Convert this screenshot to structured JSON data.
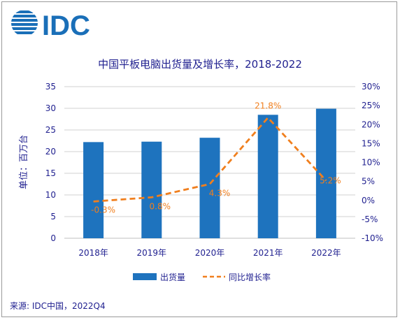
{
  "logo": {
    "text": "IDC",
    "color": "#1a6fb8"
  },
  "source": "来源: IDC中国，2022Q4",
  "chart_data": {
    "type": "bar",
    "title": "中国平板电脑出货量及增长率，2018-2022",
    "ylabel": "单位：百万台",
    "categories": [
      "2018年",
      "2019年",
      "2020年",
      "2021年",
      "2022年"
    ],
    "ylim": [
      0,
      35
    ],
    "yticks": [
      "0",
      "5",
      "10",
      "15",
      "20",
      "25",
      "30",
      "35"
    ],
    "y2lim": [
      -10,
      30
    ],
    "y2ticks": [
      "-10%",
      "-5%",
      "0%",
      "5%",
      "10%",
      "15%",
      "20%",
      "25%",
      "30%"
    ],
    "grid": true,
    "legend_position": "bottom",
    "series": [
      {
        "name": "出货量",
        "type": "bar",
        "axis": "left",
        "color": "#1e73be",
        "values": [
          22.2,
          22.3,
          23.2,
          28.5,
          29.9
        ]
      },
      {
        "name": "同比增长率",
        "type": "line",
        "style": "dashed",
        "axis": "right",
        "color": "#f07f1e",
        "values": [
          -0.3,
          0.8,
          4.3,
          21.8,
          5.2
        ],
        "labels": [
          "-0.3%",
          "0.8%",
          "4.3%",
          "21.8%",
          "5.2%"
        ]
      }
    ]
  }
}
